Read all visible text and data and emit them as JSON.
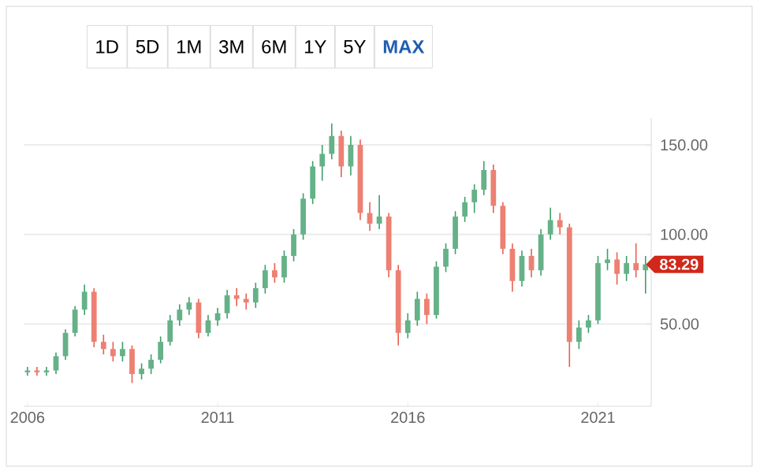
{
  "chart_data": {
    "type": "candlestick",
    "x": [
      2006.0,
      2006.25,
      2006.5,
      2006.75,
      2007.0,
      2007.25,
      2007.5,
      2007.75,
      2008.0,
      2008.25,
      2008.5,
      2008.75,
      2009.0,
      2009.25,
      2009.5,
      2009.75,
      2010.0,
      2010.25,
      2010.5,
      2010.75,
      2011.0,
      2011.25,
      2011.5,
      2011.75,
      2012.0,
      2012.25,
      2012.5,
      2012.75,
      2013.0,
      2013.25,
      2013.5,
      2013.75,
      2014.0,
      2014.25,
      2014.5,
      2014.75,
      2015.0,
      2015.25,
      2015.5,
      2015.75,
      2016.0,
      2016.25,
      2016.5,
      2016.75,
      2017.0,
      2017.25,
      2017.5,
      2017.75,
      2018.0,
      2018.25,
      2018.5,
      2018.75,
      2019.0,
      2019.25,
      2019.5,
      2019.75,
      2020.0,
      2020.25,
      2020.5,
      2020.75,
      2021.0,
      2021.25,
      2021.5,
      2021.75,
      2022.0,
      2022.25
    ],
    "ohlc": [
      [
        23,
        26,
        21,
        24
      ],
      [
        24,
        26,
        21,
        23
      ],
      [
        23,
        26,
        21,
        24
      ],
      [
        24,
        34,
        22,
        32
      ],
      [
        32,
        47,
        30,
        45
      ],
      [
        45,
        60,
        43,
        58
      ],
      [
        58,
        72,
        55,
        68
      ],
      [
        68,
        70,
        37,
        40
      ],
      [
        40,
        44,
        33,
        36
      ],
      [
        36,
        40,
        29,
        32
      ],
      [
        32,
        40,
        29,
        36
      ],
      [
        36,
        38,
        17,
        22
      ],
      [
        22,
        28,
        19,
        25
      ],
      [
        25,
        33,
        22,
        30
      ],
      [
        30,
        43,
        28,
        40
      ],
      [
        40,
        55,
        38,
        52
      ],
      [
        52,
        61,
        49,
        58
      ],
      [
        58,
        65,
        55,
        62
      ],
      [
        62,
        64,
        42,
        45
      ],
      [
        45,
        55,
        43,
        52
      ],
      [
        52,
        59,
        49,
        56
      ],
      [
        56,
        69,
        53,
        66
      ],
      [
        66,
        70,
        60,
        64
      ],
      [
        64,
        67,
        58,
        62
      ],
      [
        62,
        73,
        59,
        70
      ],
      [
        70,
        83,
        67,
        80
      ],
      [
        80,
        84,
        73,
        76
      ],
      [
        76,
        91,
        73,
        88
      ],
      [
        88,
        103,
        85,
        100
      ],
      [
        100,
        123,
        97,
        120
      ],
      [
        120,
        141,
        117,
        138
      ],
      [
        138,
        150,
        130,
        145
      ],
      [
        145,
        162,
        142,
        155
      ],
      [
        155,
        158,
        132,
        138
      ],
      [
        138,
        155,
        133,
        150
      ],
      [
        150,
        153,
        108,
        112
      ],
      [
        112,
        118,
        102,
        106
      ],
      [
        106,
        122,
        103,
        110
      ],
      [
        110,
        112,
        76,
        80
      ],
      [
        80,
        83,
        38,
        45
      ],
      [
        45,
        56,
        42,
        52
      ],
      [
        52,
        68,
        49,
        64
      ],
      [
        64,
        67,
        50,
        55
      ],
      [
        55,
        85,
        53,
        82
      ],
      [
        82,
        95,
        79,
        92
      ],
      [
        92,
        113,
        89,
        110
      ],
      [
        110,
        121,
        107,
        118
      ],
      [
        118,
        128,
        112,
        125
      ],
      [
        125,
        141,
        122,
        136
      ],
      [
        136,
        139,
        112,
        116
      ],
      [
        116,
        118,
        89,
        92
      ],
      [
        92,
        95,
        68,
        74
      ],
      [
        74,
        91,
        71,
        88
      ],
      [
        88,
        92,
        76,
        80
      ],
      [
        80,
        103,
        77,
        100
      ],
      [
        100,
        115,
        97,
        108
      ],
      [
        108,
        112,
        100,
        104
      ],
      [
        104,
        106,
        26,
        40
      ],
      [
        40,
        52,
        36,
        48
      ],
      [
        48,
        55,
        45,
        52
      ],
      [
        52,
        88,
        50,
        84
      ],
      [
        84,
        92,
        80,
        86
      ],
      [
        86,
        90,
        72,
        78
      ],
      [
        78,
        88,
        74,
        84
      ],
      [
        84,
        95,
        76,
        80
      ],
      [
        80,
        88,
        67,
        83.29
      ]
    ],
    "xlim": [
      2005.9,
      2022.4
    ],
    "ylim": [
      4,
      165
    ],
    "xticks": [
      2006,
      2011,
      2016,
      2021
    ],
    "yticks": [
      {
        "value": 50,
        "label": "50.00"
      },
      {
        "value": 100,
        "label": "100.00"
      },
      {
        "value": 150,
        "label": "150.00"
      }
    ],
    "grid": "y",
    "annotations": [
      "1D",
      "5D",
      "1M",
      "3M",
      "6M",
      "1Y",
      "5Y",
      "MAX",
      {
        "text": "83.29",
        "x": 2022.25,
        "y": 83.29
      }
    ]
  }
}
